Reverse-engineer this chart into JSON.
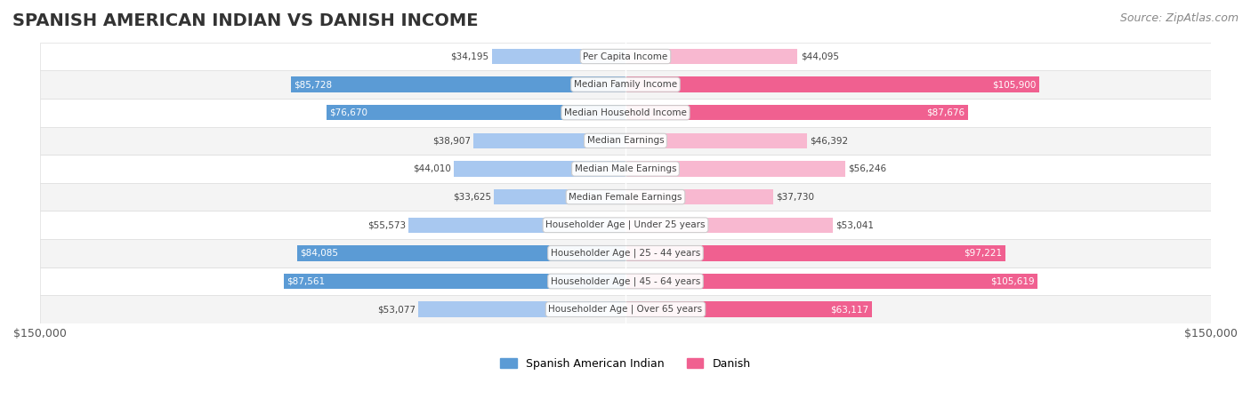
{
  "title": "SPANISH AMERICAN INDIAN VS DANISH INCOME",
  "source": "Source: ZipAtlas.com",
  "max_value": 150000,
  "categories": [
    "Per Capita Income",
    "Median Family Income",
    "Median Household Income",
    "Median Earnings",
    "Median Male Earnings",
    "Median Female Earnings",
    "Householder Age | Under 25 years",
    "Householder Age | 25 - 44 years",
    "Householder Age | 45 - 64 years",
    "Householder Age | Over 65 years"
  ],
  "left_values": [
    34195,
    85728,
    76670,
    38907,
    44010,
    33625,
    55573,
    84085,
    87561,
    53077
  ],
  "right_values": [
    44095,
    105900,
    87676,
    46392,
    56246,
    37730,
    53041,
    97221,
    105619,
    63117
  ],
  "left_labels": [
    "$34,195",
    "$85,728",
    "$76,670",
    "$38,907",
    "$44,010",
    "$33,625",
    "$55,573",
    "$84,085",
    "$87,561",
    "$53,077"
  ],
  "right_labels": [
    "$44,095",
    "$105,900",
    "$87,676",
    "$46,392",
    "$56,246",
    "$37,730",
    "$53,041",
    "$97,221",
    "$105,619",
    "$63,117"
  ],
  "left_color_strong": "#5b9bd5",
  "left_color_light": "#a8c8f0",
  "right_color_strong": "#f06090",
  "right_color_light": "#f8b8d0",
  "label_left": "Spanish American Indian",
  "label_right": "Danish",
  "bg_color": "#ffffff",
  "row_bg_color": "#f0f0f0",
  "row_alt_bg": "#ffffff",
  "strong_threshold": 60000,
  "title_fontsize": 14,
  "source_fontsize": 9,
  "bar_height": 0.55,
  "x_axis_label_left": "$150,000",
  "x_axis_label_right": "$150,000"
}
